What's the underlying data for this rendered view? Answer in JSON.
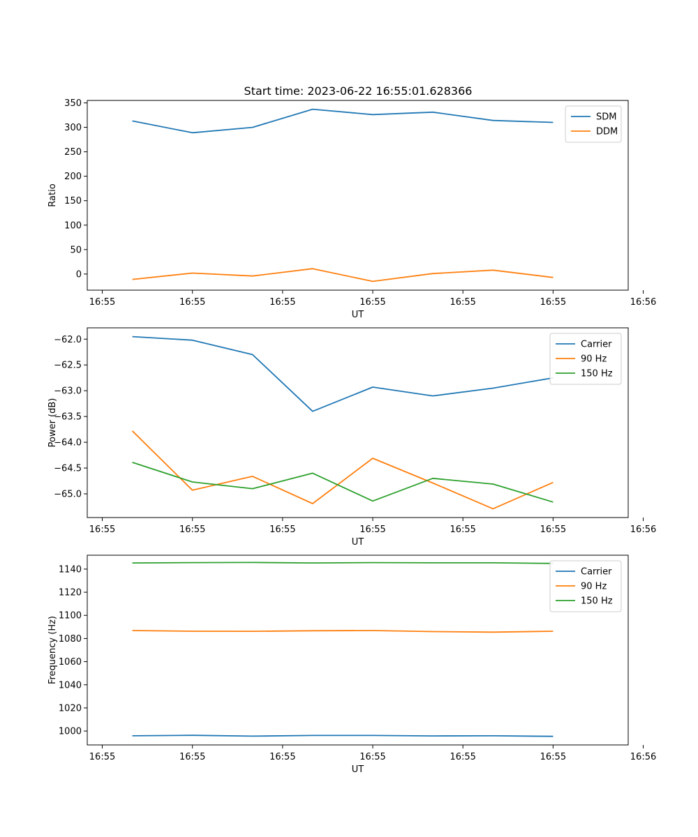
{
  "figure": {
    "title": "Start time: 2023-06-22 16:55:01.628366"
  },
  "chart_data": [
    {
      "type": "line",
      "title": "Start time: 2023-06-22 16:55:01.628366",
      "xlabel": "UT",
      "ylabel": "Ratio",
      "x": [
        1,
        2,
        3,
        4,
        5,
        6,
        7,
        8
      ],
      "xlim": [
        0.25,
        9.25
      ],
      "xticks": [
        0.5,
        2,
        3.5,
        5,
        6.5,
        8,
        9.5
      ],
      "xtick_labels": [
        "16:55",
        "16:55",
        "16:55",
        "16:55",
        "16:55",
        "16:55",
        "16:56"
      ],
      "ylim": [
        -33,
        355
      ],
      "yticks": [
        0,
        50,
        100,
        150,
        200,
        250,
        300,
        350
      ],
      "ytick_labels": [
        "0",
        "50",
        "100",
        "150",
        "200",
        "250",
        "300",
        "350"
      ],
      "legend": "top-right",
      "grid": false,
      "series": [
        {
          "name": "SDM",
          "color": "#1f77b4",
          "values": [
            313,
            289,
            300,
            337,
            326,
            331,
            314,
            310
          ]
        },
        {
          "name": "DDM",
          "color": "#ff7f0e",
          "values": [
            -11,
            2,
            -4,
            11,
            -15,
            1,
            8,
            -7
          ]
        }
      ]
    },
    {
      "type": "line",
      "title": "",
      "xlabel": "UT",
      "ylabel": "Power (dB)",
      "x": [
        1,
        2,
        3,
        4,
        5,
        6,
        7,
        8
      ],
      "xlim": [
        0.25,
        9.25
      ],
      "xticks": [
        0.5,
        2,
        3.5,
        5,
        6.5,
        8,
        9.5
      ],
      "xtick_labels": [
        "16:55",
        "16:55",
        "16:55",
        "16:55",
        "16:55",
        "16:55",
        "16:56"
      ],
      "ylim": [
        -65.46,
        -61.78
      ],
      "yticks": [
        -62.0,
        -62.5,
        -63.0,
        -63.5,
        -64.0,
        -64.5,
        -65.0
      ],
      "ytick_labels": [
        "−62.0",
        "−62.5",
        "−63.0",
        "−63.5",
        "−64.0",
        "−64.5",
        "−65.0"
      ],
      "legend": "top-right",
      "grid": false,
      "series": [
        {
          "name": "Carrier",
          "color": "#1f77b4",
          "values": [
            -61.95,
            -62.02,
            -62.3,
            -63.4,
            -62.93,
            -63.1,
            -62.95,
            -62.75
          ]
        },
        {
          "name": "90 Hz",
          "color": "#ff7f0e",
          "values": [
            -63.78,
            -64.93,
            -64.66,
            -65.19,
            -64.31,
            -64.79,
            -65.29,
            -64.78
          ]
        },
        {
          "name": "150 Hz",
          "color": "#2ca02c",
          "values": [
            -64.39,
            -64.77,
            -64.9,
            -64.6,
            -65.14,
            -64.7,
            -64.81,
            -65.16
          ]
        }
      ]
    },
    {
      "type": "line",
      "title": "",
      "xlabel": "UT",
      "ylabel": "Frequency (Hz)",
      "x": [
        1,
        2,
        3,
        4,
        5,
        6,
        7,
        8
      ],
      "xlim": [
        0.25,
        9.25
      ],
      "xticks": [
        0.5,
        2,
        3.5,
        5,
        6.5,
        8,
        9.5
      ],
      "xtick_labels": [
        "16:55",
        "16:55",
        "16:55",
        "16:55",
        "16:55",
        "16:55",
        "16:56"
      ],
      "ylim": [
        988,
        1152
      ],
      "yticks": [
        1000,
        1020,
        1040,
        1060,
        1080,
        1100,
        1120,
        1140
      ],
      "ytick_labels": [
        "1000",
        "1020",
        "1040",
        "1060",
        "1080",
        "1100",
        "1120",
        "1140"
      ],
      "legend": "top-right",
      "grid": false,
      "series": [
        {
          "name": "Carrier",
          "color": "#1f77b4",
          "values": [
            995.9,
            996.3,
            995.6,
            996.2,
            996.2,
            995.8,
            995.9,
            995.4
          ]
        },
        {
          "name": "90 Hz",
          "color": "#ff7f0e",
          "values": [
            1086.9,
            1086.3,
            1086.2,
            1086.7,
            1086.9,
            1086.0,
            1085.5,
            1086.3
          ]
        },
        {
          "name": "150 Hz",
          "color": "#2ca02c",
          "values": [
            1145.3,
            1145.6,
            1145.7,
            1145.3,
            1145.6,
            1145.4,
            1145.4,
            1144.9
          ]
        }
      ]
    }
  ]
}
